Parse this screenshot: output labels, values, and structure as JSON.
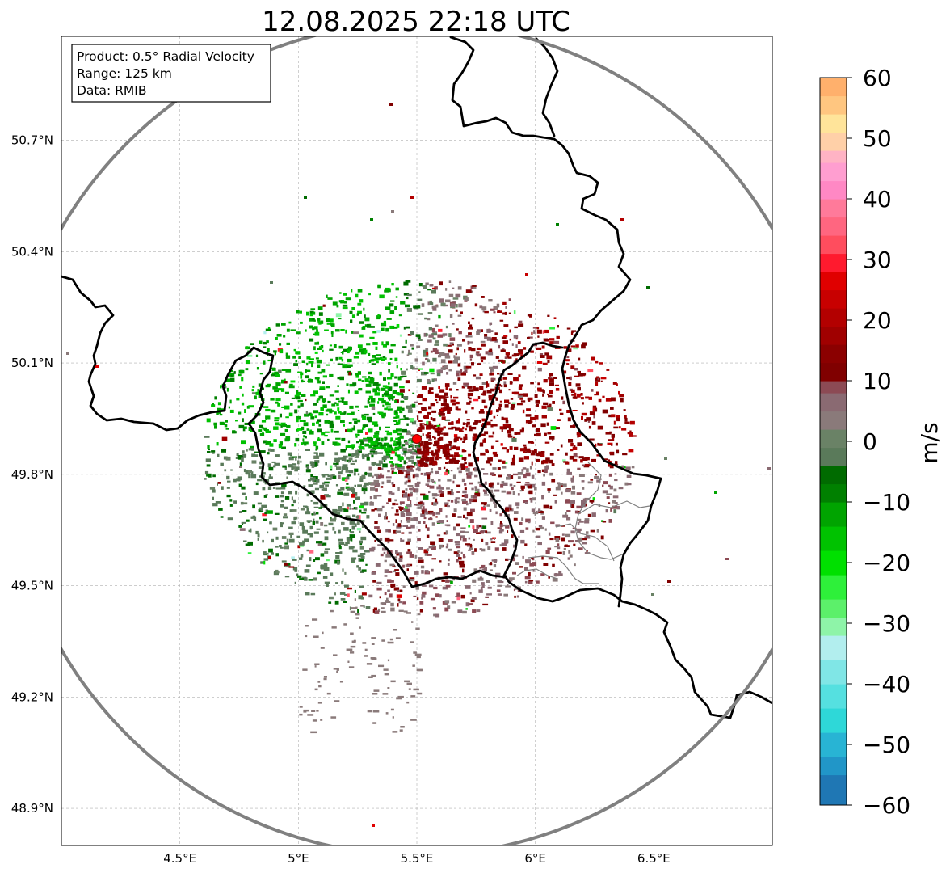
{
  "title": "12.08.2025 22:18 UTC",
  "info_box": {
    "product": "Product: 0.5° Radial Velocity",
    "range": "Range: 125 km",
    "data": "Data: RMIB"
  },
  "map": {
    "lon_range": [
      4.0,
      7.0
    ],
    "lat_range": [
      48.8,
      50.98
    ],
    "grid": true,
    "radar_site": {
      "lon": 5.5,
      "lat": 49.915
    },
    "range_ring_km": 125,
    "lon_ticks": [
      {
        "value": 4.5,
        "label": "4.5°E"
      },
      {
        "value": 5.0,
        "label": "5°E"
      },
      {
        "value": 5.5,
        "label": "5.5°E"
      },
      {
        "value": 6.0,
        "label": "6°E"
      },
      {
        "value": 6.5,
        "label": "6.5°E"
      }
    ],
    "lat_ticks": [
      {
        "value": 48.9,
        "label": "48.9°N"
      },
      {
        "value": 49.2,
        "label": "49.2°N"
      },
      {
        "value": 49.5,
        "label": "49.5°N"
      },
      {
        "value": 49.8,
        "label": "49.8°N"
      },
      {
        "value": 50.1,
        "label": "50.1°N"
      },
      {
        "value": 50.4,
        "label": "50.4°N"
      },
      {
        "value": 50.7,
        "label": "50.7°N"
      }
    ]
  },
  "colorbar": {
    "label": "m/s",
    "range": [
      -60,
      60
    ],
    "ticks": [
      {
        "value": 60,
        "label": "60"
      },
      {
        "value": 50,
        "label": "50"
      },
      {
        "value": 40,
        "label": "40"
      },
      {
        "value": 30,
        "label": "30"
      },
      {
        "value": 20,
        "label": "20"
      },
      {
        "value": 10,
        "label": "10"
      },
      {
        "value": 0,
        "label": "0"
      },
      {
        "value": -10,
        "label": "−10"
      },
      {
        "value": -20,
        "label": "−20"
      },
      {
        "value": -30,
        "label": "−30"
      },
      {
        "value": -40,
        "label": "−40"
      },
      {
        "value": -50,
        "label": "−50"
      },
      {
        "value": -60,
        "label": "−60"
      }
    ]
  },
  "colors": {
    "approaching": "#007a00",
    "receding": "#8b0000",
    "near_zero": "#8a7a7a",
    "range_ring": "#808080",
    "borders": "#000000",
    "radar_marker": "#ff0000"
  }
}
